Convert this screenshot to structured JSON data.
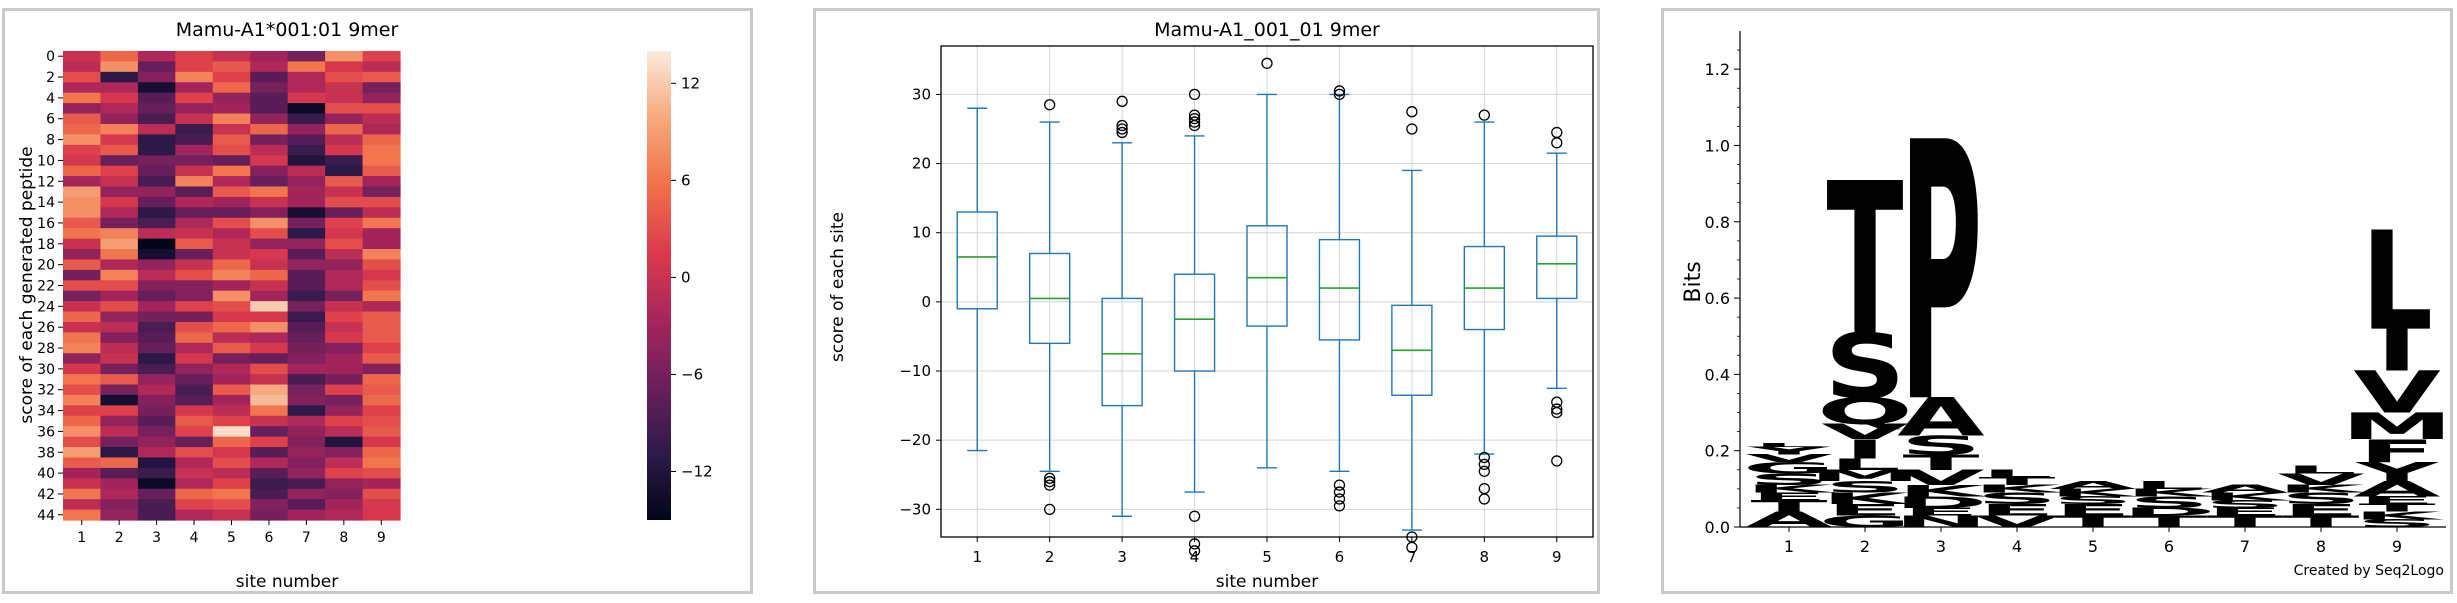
{
  "chart_data": [
    {
      "type": "heatmap",
      "title": "Mamu-A1*001:01 9mer",
      "xlabel": "site number",
      "ylabel": "score of each generated peptide",
      "x_ticks": [
        "1",
        "2",
        "3",
        "4",
        "5",
        "6",
        "7",
        "8",
        "9"
      ],
      "y_ticks": [
        "0",
        "2",
        "4",
        "6",
        "8",
        "10",
        "12",
        "14",
        "16",
        "18",
        "20",
        "22",
        "24",
        "26",
        "28",
        "30",
        "32",
        "34",
        "36",
        "38",
        "40",
        "42",
        "44"
      ],
      "colorbar_ticks": [
        "12",
        "6",
        "0",
        "−6",
        "−12"
      ],
      "colorbar_values": [
        12,
        6,
        0,
        -6,
        -12
      ],
      "vmin": -15,
      "vmax": 14,
      "colormap_stops": [
        "#03051a",
        "#2d1a4a",
        "#6b1f5c",
        "#a8255b",
        "#dc3a4c",
        "#f1714a",
        "#f6a97c",
        "#faebdd"
      ],
      "rows": [
        [
          0,
          5,
          -2,
          2,
          0,
          -3,
          -6,
          8,
          2
        ],
        [
          -1,
          8,
          -7,
          2,
          4,
          -2,
          6,
          1,
          -1
        ],
        [
          3,
          -11,
          -5,
          7,
          2,
          -8,
          -2,
          3,
          4
        ],
        [
          -2,
          -2,
          -13,
          -3,
          5,
          -6,
          -2,
          0,
          -6
        ],
        [
          6,
          1,
          -8,
          2,
          -4,
          -8,
          1,
          0,
          -4
        ],
        [
          -4,
          -2,
          -7,
          -4,
          -3,
          -8,
          -14,
          3,
          3
        ],
        [
          4,
          -4,
          -9,
          0,
          7,
          -4,
          -10,
          -4,
          -1
        ],
        [
          5,
          7,
          -1,
          -10,
          0,
          5,
          -4,
          5,
          -2
        ],
        [
          8,
          1,
          -11,
          -9,
          4,
          -6,
          -8,
          -1,
          5
        ],
        [
          2,
          4,
          -11,
          -3,
          3,
          -1,
          -10,
          1,
          6
        ],
        [
          1,
          -7,
          -6,
          -6,
          -7,
          1,
          -12,
          -10,
          6
        ],
        [
          5,
          2,
          -7,
          0,
          6,
          -5,
          -1,
          -11,
          4
        ],
        [
          -3,
          0,
          -9,
          7,
          -2,
          -7,
          -4,
          4,
          -3
        ],
        [
          9,
          -4,
          -4,
          -8,
          4,
          6,
          -3,
          0,
          -6
        ],
        [
          8,
          1,
          -7,
          -2,
          -3,
          0,
          -3,
          3,
          3
        ],
        [
          8,
          -2,
          -11,
          -7,
          -7,
          -5,
          -13,
          -7,
          -1
        ],
        [
          4,
          -6,
          -9,
          -2,
          3,
          8,
          -6,
          2,
          6
        ],
        [
          6,
          7,
          -1,
          0,
          -2,
          3,
          -11,
          1,
          -3
        ],
        [
          0,
          9,
          -15,
          4,
          0,
          -4,
          -4,
          3,
          -3
        ],
        [
          -4,
          6,
          -13,
          -7,
          0,
          1,
          -8,
          -1,
          7
        ],
        [
          4,
          -2,
          -4,
          0,
          5,
          0,
          -4,
          -4,
          3
        ],
        [
          -6,
          7,
          -1,
          3,
          7,
          5,
          -8,
          -2,
          1
        ],
        [
          3,
          3,
          -5,
          -5,
          -3,
          0,
          -8,
          -2,
          3
        ],
        [
          -6,
          -3,
          -7,
          -5,
          8,
          -3,
          -10,
          -6,
          6
        ],
        [
          0,
          3,
          -3,
          2,
          3,
          12,
          -6,
          0,
          -2
        ],
        [
          5,
          -4,
          -6,
          -6,
          1,
          1,
          -10,
          2,
          4
        ],
        [
          0,
          -1,
          -9,
          3,
          5,
          8,
          -8,
          0,
          4
        ],
        [
          6,
          -5,
          -8,
          5,
          -1,
          -2,
          -7,
          1,
          4
        ],
        [
          7,
          -1,
          -7,
          -2,
          4,
          1,
          -6,
          -5,
          2
        ],
        [
          -4,
          0,
          -11,
          1,
          -6,
          -7,
          -5,
          -3,
          4
        ],
        [
          1,
          -6,
          -9,
          -4,
          -2,
          3,
          -3,
          -3,
          -5
        ],
        [
          6,
          4,
          -4,
          -7,
          -3,
          0,
          -9,
          -6,
          5
        ],
        [
          3,
          -6,
          -2,
          -9,
          4,
          10,
          -6,
          2,
          4
        ],
        [
          7,
          -13,
          -5,
          -8,
          -3,
          11,
          -5,
          -6,
          5
        ],
        [
          2,
          2,
          -6,
          1,
          -1,
          6,
          -11,
          -4,
          2
        ],
        [
          5,
          -4,
          -8,
          4,
          2,
          0,
          -2,
          2,
          3
        ],
        [
          8,
          -1,
          -6,
          2,
          13,
          -7,
          -4,
          -1,
          4
        ],
        [
          3,
          -6,
          -4,
          -7,
          5,
          2,
          -5,
          -12,
          1
        ],
        [
          9,
          -11,
          -2,
          3,
          1,
          -8,
          -4,
          -5,
          5
        ],
        [
          4,
          5,
          -12,
          -2,
          3,
          -2,
          -5,
          -1,
          6
        ],
        [
          -3,
          -8,
          -10,
          0,
          -1,
          -8,
          -4,
          2,
          3
        ],
        [
          0,
          -3,
          -14,
          -2,
          2,
          -10,
          -9,
          -4,
          -3
        ],
        [
          6,
          -2,
          -7,
          5,
          6,
          -9,
          -4,
          -5,
          3
        ],
        [
          -1,
          -5,
          -9,
          2,
          3,
          -5,
          -8,
          -3,
          1
        ],
        [
          6,
          -4,
          -9,
          -2,
          0,
          -6,
          -3,
          -2,
          1
        ]
      ]
    },
    {
      "type": "boxplot",
      "title": "Mamu-A1_001_01 9mer",
      "xlabel": "site number",
      "ylabel": "score of each site",
      "ylim": [
        -34,
        37
      ],
      "y_ticks": [
        30,
        20,
        10,
        0,
        -10,
        -20,
        -30
      ],
      "y_tick_labels": [
        "30",
        "20",
        "10",
        "0",
        "−10",
        "−20",
        "−30"
      ],
      "categories": [
        "1",
        "2",
        "3",
        "4",
        "5",
        "6",
        "7",
        "8",
        "9"
      ],
      "grid": true,
      "box_color": "#1f77b4",
      "median_color": "#2ca02c",
      "boxes": [
        {
          "site": "1",
          "whislo": -21.5,
          "q1": -1,
          "med": 6.5,
          "q3": 13,
          "whishi": 28,
          "fliers": []
        },
        {
          "site": "2",
          "whislo": -24.5,
          "q1": -6,
          "med": 0.5,
          "q3": 7,
          "whishi": 26,
          "fliers": [
            28.5,
            -25.5,
            -26,
            -26.5,
            -30
          ]
        },
        {
          "site": "3",
          "whislo": -31,
          "q1": -15,
          "med": -7.5,
          "q3": 0.5,
          "whishi": 23,
          "fliers": [
            29,
            25.5,
            25,
            24.5
          ]
        },
        {
          "site": "4",
          "whislo": -27.5,
          "q1": -10,
          "med": -2.5,
          "q3": 4,
          "whishi": 24,
          "fliers": [
            30,
            27,
            26.5,
            26,
            25.5,
            -31,
            -35,
            -36
          ]
        },
        {
          "site": "5",
          "whislo": -24,
          "q1": -3.5,
          "med": 3.5,
          "q3": 11,
          "whishi": 30,
          "fliers": [
            34.5
          ]
        },
        {
          "site": "6",
          "whislo": -24.5,
          "q1": -5.5,
          "med": 2,
          "q3": 9,
          "whishi": 30,
          "fliers": [
            30.5,
            30,
            -26.5,
            -27.5,
            -28.5,
            -29.5
          ]
        },
        {
          "site": "7",
          "whislo": -33,
          "q1": -13.5,
          "med": -7,
          "q3": -0.5,
          "whishi": 19,
          "fliers": [
            27.5,
            25,
            -34,
            -35.5
          ]
        },
        {
          "site": "8",
          "whislo": -22,
          "q1": -4,
          "med": 2,
          "q3": 8,
          "whishi": 26,
          "fliers": [
            27,
            -22.5,
            -23.5,
            -24.5,
            -27,
            -28.5
          ]
        },
        {
          "site": "9",
          "whislo": -12.5,
          "q1": 0.5,
          "med": 5.5,
          "q3": 9.5,
          "whishi": 21.5,
          "fliers": [
            24.5,
            23,
            -14.5,
            -15.5,
            -16,
            -23
          ]
        }
      ]
    },
    {
      "type": "sequence-logo",
      "ylabel": "Bits",
      "ylim": [
        0,
        1.3
      ],
      "y_ticks": [
        0,
        0.2,
        0.4,
        0.6,
        0.8,
        1.0,
        1.2
      ],
      "y_tick_labels": [
        "0.0",
        "0.2",
        "0.4",
        "0.6",
        "0.8",
        "1.0",
        "1.2"
      ],
      "categories": [
        "1",
        "2",
        "3",
        "4",
        "5",
        "6",
        "7",
        "8",
        "9"
      ],
      "footer": "Created by Seq2Logo",
      "residue_colors": {
        "hydrophobic": "#000000",
        "polar": "#00cc00",
        "basic": "#0000ff",
        "acidic": "#ff0000",
        "other": "#888888"
      },
      "stacks": [
        {
          "site": "1",
          "letters": [
            {
              "aa": "A",
              "bits": 0.04
            },
            {
              "aa": "T",
              "bits": 0.03
            },
            {
              "aa": "E",
              "bits": 0.02
            },
            {
              "aa": "K",
              "bits": 0.02
            },
            {
              "aa": "S",
              "bits": 0.03
            },
            {
              "aa": "G",
              "bits": 0.03
            },
            {
              "aa": "V",
              "bits": 0.02
            },
            {
              "aa": "Y",
              "bits": 0.02
            },
            {
              "aa": "L",
              "bits": 0.01
            }
          ]
        },
        {
          "site": "2",
          "letters": [
            {
              "aa": "G",
              "bits": 0.03
            },
            {
              "aa": "E",
              "bits": 0.03
            },
            {
              "aa": "K",
              "bits": 0.03
            },
            {
              "aa": "S",
              "bits": 0.03
            },
            {
              "aa": "M",
              "bits": 0.03
            },
            {
              "aa": "L",
              "bits": 0.03
            },
            {
              "aa": "I",
              "bits": 0.05
            },
            {
              "aa": "V",
              "bits": 0.04
            },
            {
              "aa": "Q",
              "bits": 0.07
            },
            {
              "aa": "S",
              "bits": 0.17
            },
            {
              "aa": "T",
              "bits": 0.4
            }
          ]
        },
        {
          "site": "3",
          "letters": [
            {
              "aa": "N",
              "bits": 0.03
            },
            {
              "aa": "E",
              "bits": 0.02
            },
            {
              "aa": "D",
              "bits": 0.03
            },
            {
              "aa": "K",
              "bits": 0.03
            },
            {
              "aa": "V",
              "bits": 0.04
            },
            {
              "aa": "T",
              "bits": 0.04
            },
            {
              "aa": "S",
              "bits": 0.05
            },
            {
              "aa": "A",
              "bits": 0.1
            },
            {
              "aa": "P",
              "bits": 0.68
            }
          ]
        },
        {
          "site": "4",
          "letters": [
            {
              "aa": "V",
              "bits": 0.03
            },
            {
              "aa": "E",
              "bits": 0.03
            },
            {
              "aa": "S",
              "bits": 0.03
            },
            {
              "aa": "K",
              "bits": 0.02
            },
            {
              "aa": "T",
              "bits": 0.02
            },
            {
              "aa": "L",
              "bits": 0.02
            }
          ]
        },
        {
          "site": "5",
          "letters": [
            {
              "aa": "T",
              "bits": 0.03
            },
            {
              "aa": "E",
              "bits": 0.03
            },
            {
              "aa": "S",
              "bits": 0.02
            },
            {
              "aa": "K",
              "bits": 0.02
            },
            {
              "aa": "A",
              "bits": 0.02
            }
          ]
        },
        {
          "site": "6",
          "letters": [
            {
              "aa": "T",
              "bits": 0.03
            },
            {
              "aa": "D",
              "bits": 0.02
            },
            {
              "aa": "S",
              "bits": 0.03
            },
            {
              "aa": "K",
              "bits": 0.02
            },
            {
              "aa": "L",
              "bits": 0.02
            }
          ]
        },
        {
          "site": "7",
          "letters": [
            {
              "aa": "T",
              "bits": 0.03
            },
            {
              "aa": "E",
              "bits": 0.02
            },
            {
              "aa": "S",
              "bits": 0.02
            },
            {
              "aa": "K",
              "bits": 0.02
            },
            {
              "aa": "A",
              "bits": 0.02
            }
          ]
        },
        {
          "site": "8",
          "letters": [
            {
              "aa": "T",
              "bits": 0.03
            },
            {
              "aa": "E",
              "bits": 0.03
            },
            {
              "aa": "S",
              "bits": 0.03
            },
            {
              "aa": "K",
              "bits": 0.02
            },
            {
              "aa": "V",
              "bits": 0.03
            },
            {
              "aa": "L",
              "bits": 0.02
            }
          ]
        },
        {
          "site": "9",
          "letters": [
            {
              "aa": "S",
              "bits": 0.02
            },
            {
              "aa": "K",
              "bits": 0.02
            },
            {
              "aa": "T",
              "bits": 0.02
            },
            {
              "aa": "E",
              "bits": 0.02
            },
            {
              "aa": "A",
              "bits": 0.04
            },
            {
              "aa": "Y",
              "bits": 0.05
            },
            {
              "aa": "F",
              "bits": 0.06
            },
            {
              "aa": "M",
              "bits": 0.07
            },
            {
              "aa": "V",
              "bits": 0.11
            },
            {
              "aa": "I",
              "bits": 0.11
            },
            {
              "aa": "L",
              "bits": 0.26
            }
          ]
        }
      ]
    }
  ]
}
